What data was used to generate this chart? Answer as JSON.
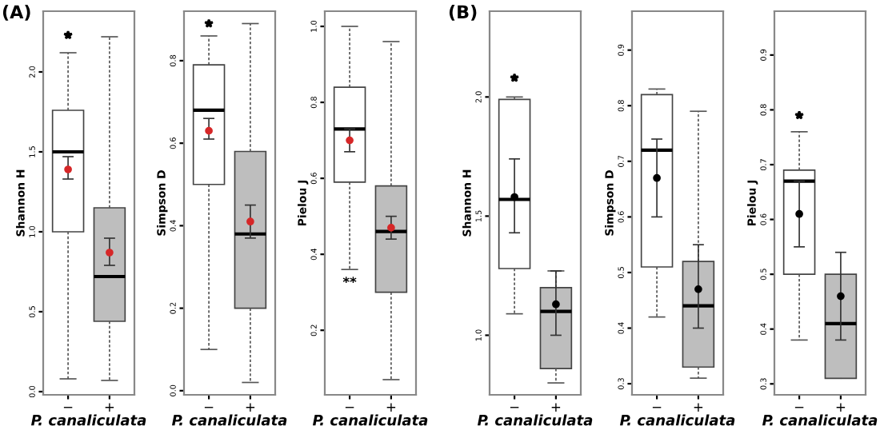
{
  "chart_data": [
    {
      "type": "box",
      "ylabel": "Shannon H",
      "xlabel": "P. canaliculata",
      "categories": [
        "−",
        "+"
      ],
      "ylim": [
        -0.02,
        2.38
      ],
      "yticks": [
        {
          "value": 0,
          "label": "0.0"
        },
        0.5,
        {
          "value": 1,
          "label": "1.0"
        },
        1.5,
        {
          "value": 2,
          "label": "2.0"
        }
      ],
      "grid": false,
      "legend": false,
      "marker": "star",
      "annotations": [
        "(A)"
      ],
      "series": [
        {
          "colors": [
            "#ffffff",
            "#bebebe"
          ],
          "boxes": [
            {
              "low": 0.08,
              "q1": 1.0,
              "median": 1.5,
              "q3": 1.76,
              "high": 2.12,
              "outliers": [
                2.23
              ]
            },
            {
              "low": 0.07,
              "q1": 0.44,
              "median": 0.72,
              "q3": 1.15,
              "high": 2.22
            }
          ]
        },
        {
          "type": "scatter",
          "x": [
            "−",
            "+"
          ],
          "values": [
            1.39,
            0.87
          ],
          "errors": [
            [
              1.33,
              1.47
            ],
            [
              0.79,
              0.96
            ]
          ],
          "color": "#d62728",
          "marker": "circle"
        }
      ]
    },
    {
      "type": "box",
      "ylabel": "Simpson D",
      "xlabel": "P. canaliculata",
      "categories": [
        "−",
        "+"
      ],
      "ylim": [
        -0.01,
        0.92
      ],
      "yticks": [
        {
          "value": 0,
          "label": "0.0"
        },
        0.2,
        0.4,
        0.6,
        0.8
      ],
      "grid": false,
      "legend": false,
      "marker": "star",
      "series": [
        {
          "colors": [
            "#ffffff",
            "#bebebe"
          ],
          "boxes": [
            {
              "low": 0.1,
              "q1": 0.5,
              "median": 0.68,
              "q3": 0.79,
              "high": 0.86,
              "outliers": [
                0.89
              ]
            },
            {
              "low": 0.02,
              "q1": 0.2,
              "median": 0.38,
              "q3": 0.58,
              "high": 0.89
            }
          ]
        },
        {
          "type": "scatter",
          "x": [
            "−",
            "+"
          ],
          "values": [
            0.63,
            0.41
          ],
          "errors": [
            [
              0.61,
              0.66
            ],
            [
              0.37,
              0.45
            ]
          ],
          "color": "#d62728",
          "marker": "circle"
        }
      ]
    },
    {
      "type": "box",
      "ylabel": "Pielou J",
      "xlabel": "P. canaliculata",
      "categories": [
        "−",
        "+"
      ],
      "ylim": [
        0.03,
        1.04
      ],
      "yticks": [
        0.2,
        0.4,
        0.6,
        0.8,
        {
          "value": 1,
          "label": "1.0"
        }
      ],
      "grid": false,
      "legend": false,
      "marker": "star",
      "annotations": [
        "**"
      ],
      "series": [
        {
          "colors": [
            "#ffffff",
            "#bebebe"
          ],
          "boxes": [
            {
              "low": 0.36,
              "q1": 0.59,
              "median": 0.73,
              "q3": 0.84,
              "high": 1.0
            },
            {
              "low": 0.07,
              "q1": 0.3,
              "median": 0.46,
              "q3": 0.58,
              "high": 0.96
            }
          ]
        },
        {
          "type": "scatter",
          "x": [
            "−",
            "+"
          ],
          "values": [
            0.7,
            0.47
          ],
          "errors": [
            [
              0.67,
              0.73
            ],
            [
              0.44,
              0.5
            ]
          ],
          "color": "#d62728",
          "marker": "circle"
        }
      ]
    },
    {
      "type": "box",
      "ylabel": "Shannon H",
      "xlabel": "P. canaliculata",
      "categories": [
        "−",
        "+"
      ],
      "ylim": [
        0.75,
        2.36
      ],
      "yticks": [
        {
          "value": 1,
          "label": "1.0"
        },
        1.5,
        {
          "value": 2,
          "label": "2.0"
        }
      ],
      "grid": false,
      "legend": false,
      "marker": "star",
      "annotations": [
        "(B)"
      ],
      "series": [
        {
          "colors": [
            "#ffffff",
            "#bebebe"
          ],
          "boxes": [
            {
              "low": 1.09,
              "q1": 1.28,
              "median": 1.57,
              "q3": 1.99,
              "high": 2.0,
              "outliers": [
                2.08
              ]
            },
            {
              "low": 0.8,
              "q1": 0.86,
              "median": 1.1,
              "q3": 1.2,
              "high": 1.27
            }
          ]
        },
        {
          "type": "scatter",
          "x": [
            "−",
            "+"
          ],
          "values": [
            1.58,
            1.13
          ],
          "errors": [
            [
              1.43,
              1.74
            ],
            [
              1.0,
              1.27
            ]
          ],
          "color": "#000000",
          "marker": "circle"
        }
      ]
    },
    {
      "type": "box",
      "ylabel": "Simpson D",
      "xlabel": "P. canaliculata",
      "categories": [
        "−",
        "+"
      ],
      "ylim": [
        0.28,
        0.97
      ],
      "yticks": [
        0.3,
        0.4,
        0.5,
        0.6,
        0.7,
        0.8,
        0.9
      ],
      "grid": false,
      "legend": false,
      "series": [
        {
          "colors": [
            "#ffffff",
            "#bebebe"
          ],
          "boxes": [
            {
              "low": 0.42,
              "q1": 0.51,
              "median": 0.72,
              "q3": 0.82,
              "high": 0.83
            },
            {
              "low": 0.31,
              "q1": 0.33,
              "median": 0.44,
              "q3": 0.52,
              "high": 0.79
            }
          ]
        },
        {
          "type": "scatter",
          "x": [
            "−",
            "+"
          ],
          "values": [
            0.67,
            0.47
          ],
          "errors": [
            [
              0.6,
              0.74
            ],
            [
              0.4,
              0.55
            ]
          ],
          "color": "#000000",
          "marker": "circle"
        }
      ]
    },
    {
      "type": "box",
      "ylabel": "Pielou J",
      "xlabel": "P. canaliculata",
      "categories": [
        "−",
        "+"
      ],
      "ylim": [
        0.28,
        0.98
      ],
      "yticks": [
        0.3,
        0.4,
        0.5,
        0.6,
        0.7,
        0.8,
        0.9
      ],
      "grid": false,
      "legend": false,
      "marker": "star",
      "series": [
        {
          "colors": [
            "#ffffff",
            "#bebebe"
          ],
          "boxes": [
            {
              "low": 0.38,
              "q1": 0.5,
              "median": 0.67,
              "q3": 0.69,
              "high": 0.76,
              "outliers": [
                0.79
              ]
            },
            {
              "low": 0.31,
              "q1": 0.31,
              "median": 0.41,
              "q3": 0.5,
              "high": 0.5
            }
          ]
        },
        {
          "type": "scatter",
          "x": [
            "−",
            "+"
          ],
          "values": [
            0.61,
            0.46
          ],
          "errors": [
            [
              0.55,
              0.67
            ],
            [
              0.38,
              0.54
            ]
          ],
          "color": "#000000",
          "marker": "circle"
        }
      ]
    }
  ]
}
